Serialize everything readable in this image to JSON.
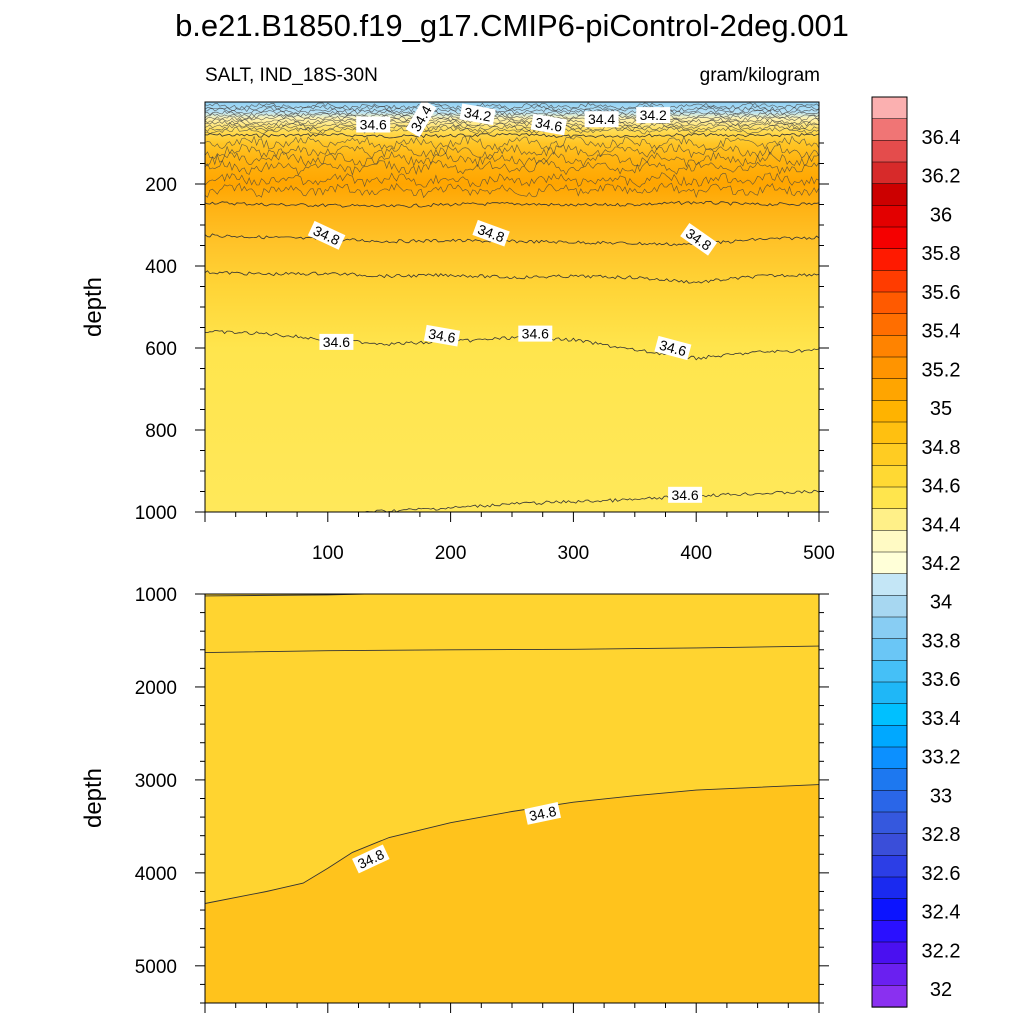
{
  "title": "b.e21.B1850.f19_g17.CMIP6-piControl-2deg.001",
  "subtitle_left": "SALT, IND_18S-30N",
  "subtitle_right": "gram/kilogram",
  "chart_data": [
    {
      "type": "contour",
      "panel": "upper",
      "ylabel": "depth",
      "xlim": [
        0,
        500
      ],
      "ylim": [
        0,
        1000
      ],
      "y_reversed": true,
      "x_ticks": [
        100,
        200,
        300,
        400,
        500
      ],
      "y_ticks": [
        200,
        400,
        600,
        800,
        1000
      ],
      "contour_lines": [
        {
          "level": 34.6,
          "x": [
            0,
            50,
            100,
            150,
            200,
            250,
            300,
            350,
            400,
            450,
            500
          ],
          "y": [
            80,
            82,
            80,
            84,
            82,
            80,
            84,
            82,
            80,
            82,
            80
          ]
        },
        {
          "level": 34.8,
          "x": [
            0,
            50,
            100,
            150,
            200,
            250,
            300,
            350,
            400,
            450,
            500
          ],
          "y": [
            245,
            250,
            252,
            255,
            250,
            248,
            252,
            250,
            245,
            250,
            248
          ]
        },
        {
          "level": 34.8,
          "x": [
            0,
            50,
            100,
            150,
            200,
            250,
            300,
            350,
            400,
            450,
            500
          ],
          "y": [
            325,
            330,
            335,
            340,
            338,
            340,
            342,
            345,
            348,
            335,
            330
          ]
        },
        {
          "level": 34.8,
          "x": [
            0,
            50,
            100,
            150,
            200,
            250,
            300,
            350,
            400,
            450,
            500
          ],
          "y": [
            415,
            420,
            418,
            425,
            422,
            428,
            425,
            428,
            440,
            425,
            420
          ]
        },
        {
          "level": 34.6,
          "x": [
            0,
            50,
            100,
            150,
            200,
            250,
            300,
            350,
            400,
            450,
            500
          ],
          "y": [
            560,
            565,
            580,
            590,
            585,
            575,
            580,
            605,
            625,
            610,
            605
          ]
        },
        {
          "level": 34.6,
          "x": [
            130,
            200,
            250,
            300,
            350,
            400,
            450,
            500
          ],
          "y": [
            1000,
            990,
            980,
            975,
            970,
            960,
            955,
            950
          ]
        }
      ],
      "contour_labels": [
        {
          "text": "34.6",
          "x": 137,
          "y": 55,
          "angle": 0
        },
        {
          "text": "34.4",
          "x": 176,
          "y": 40,
          "angle": -60
        },
        {
          "text": "34.2",
          "x": 222,
          "y": 30,
          "angle": 10
        },
        {
          "text": "34.6",
          "x": 280,
          "y": 55,
          "angle": 10
        },
        {
          "text": "34.4",
          "x": 323,
          "y": 42,
          "angle": 0
        },
        {
          "text": "34.2",
          "x": 365,
          "y": 32,
          "angle": 0
        },
        {
          "text": "34.8",
          "x": 99,
          "y": 325,
          "angle": 25
        },
        {
          "text": "34.8",
          "x": 233,
          "y": 320,
          "angle": 20
        },
        {
          "text": "34.8",
          "x": 402,
          "y": 335,
          "angle": 35
        },
        {
          "text": "34.6",
          "x": 107,
          "y": 585,
          "angle": 0
        },
        {
          "text": "34.6",
          "x": 193,
          "y": 570,
          "angle": 10
        },
        {
          "text": "34.6",
          "x": 269,
          "y": 565,
          "angle": 0
        },
        {
          "text": "34.6",
          "x": 381,
          "y": 600,
          "angle": 15
        },
        {
          "text": "34.6",
          "x": 391,
          "y": 958,
          "angle": 0
        }
      ]
    },
    {
      "type": "contour",
      "panel": "lower",
      "ylabel": "depth",
      "xlim": [
        0,
        500
      ],
      "ylim": [
        1000,
        5400
      ],
      "y_reversed": true,
      "y_ticks": [
        1000,
        2000,
        3000,
        4000,
        5000
      ],
      "contour_lines": [
        {
          "level": 34.6,
          "x": [
            0,
            100,
            130
          ],
          "y": [
            1020,
            1010,
            1000
          ]
        },
        {
          "level": 34.7,
          "x": [
            0,
            100,
            200,
            300,
            400,
            500
          ],
          "y": [
            1630,
            1610,
            1600,
            1595,
            1580,
            1560
          ]
        },
        {
          "level": 34.8,
          "x": [
            0,
            50,
            80,
            100,
            120,
            150,
            200,
            250,
            300,
            350,
            400,
            450,
            500
          ],
          "y": [
            4330,
            4200,
            4110,
            3950,
            3780,
            3620,
            3460,
            3340,
            3240,
            3170,
            3110,
            3080,
            3050
          ]
        }
      ],
      "contour_labels": [
        {
          "text": "34.8",
          "x": 135,
          "y": 3850,
          "angle": -25
        },
        {
          "text": "34.8",
          "x": 275,
          "y": 3360,
          "angle": -12
        }
      ]
    }
  ],
  "colorbar": {
    "labels": [
      "36.4",
      "36.2",
      "36",
      "35.8",
      "35.6",
      "35.4",
      "35.2",
      "35",
      "34.8",
      "34.6",
      "34.4",
      "34.2",
      "34",
      "33.8",
      "33.6",
      "33.4",
      "33.2",
      "33",
      "32.8",
      "32.6",
      "32.4",
      "32.2",
      "32"
    ],
    "colors": [
      "#fbb0b0",
      "#f07575",
      "#e44c4c",
      "#d72a2a",
      "#cc0000",
      "#e30000",
      "#f50000",
      "#ff1a00",
      "#ff3c00",
      "#ff5a00",
      "#ff6e00",
      "#ff8300",
      "#ff9400",
      "#ffa500",
      "#ffb300",
      "#ffc010",
      "#ffcc22",
      "#ffd933",
      "#ffe54d",
      "#fff088",
      "#fffac4",
      "#ffffd8",
      "#c4e6f6",
      "#a7d7f1",
      "#88cdf3",
      "#6ac6f6",
      "#45c0f7",
      "#1fb7f7",
      "#00c0ff",
      "#00a8ff",
      "#0c90ff",
      "#1d78f0",
      "#2a66e8",
      "#3558de",
      "#3a4ed9",
      "#2c3ee6",
      "#1a2af0",
      "#0c14ff",
      "#2a10ff",
      "#4a10f0",
      "#6a20f0",
      "#8a30f0"
    ]
  }
}
